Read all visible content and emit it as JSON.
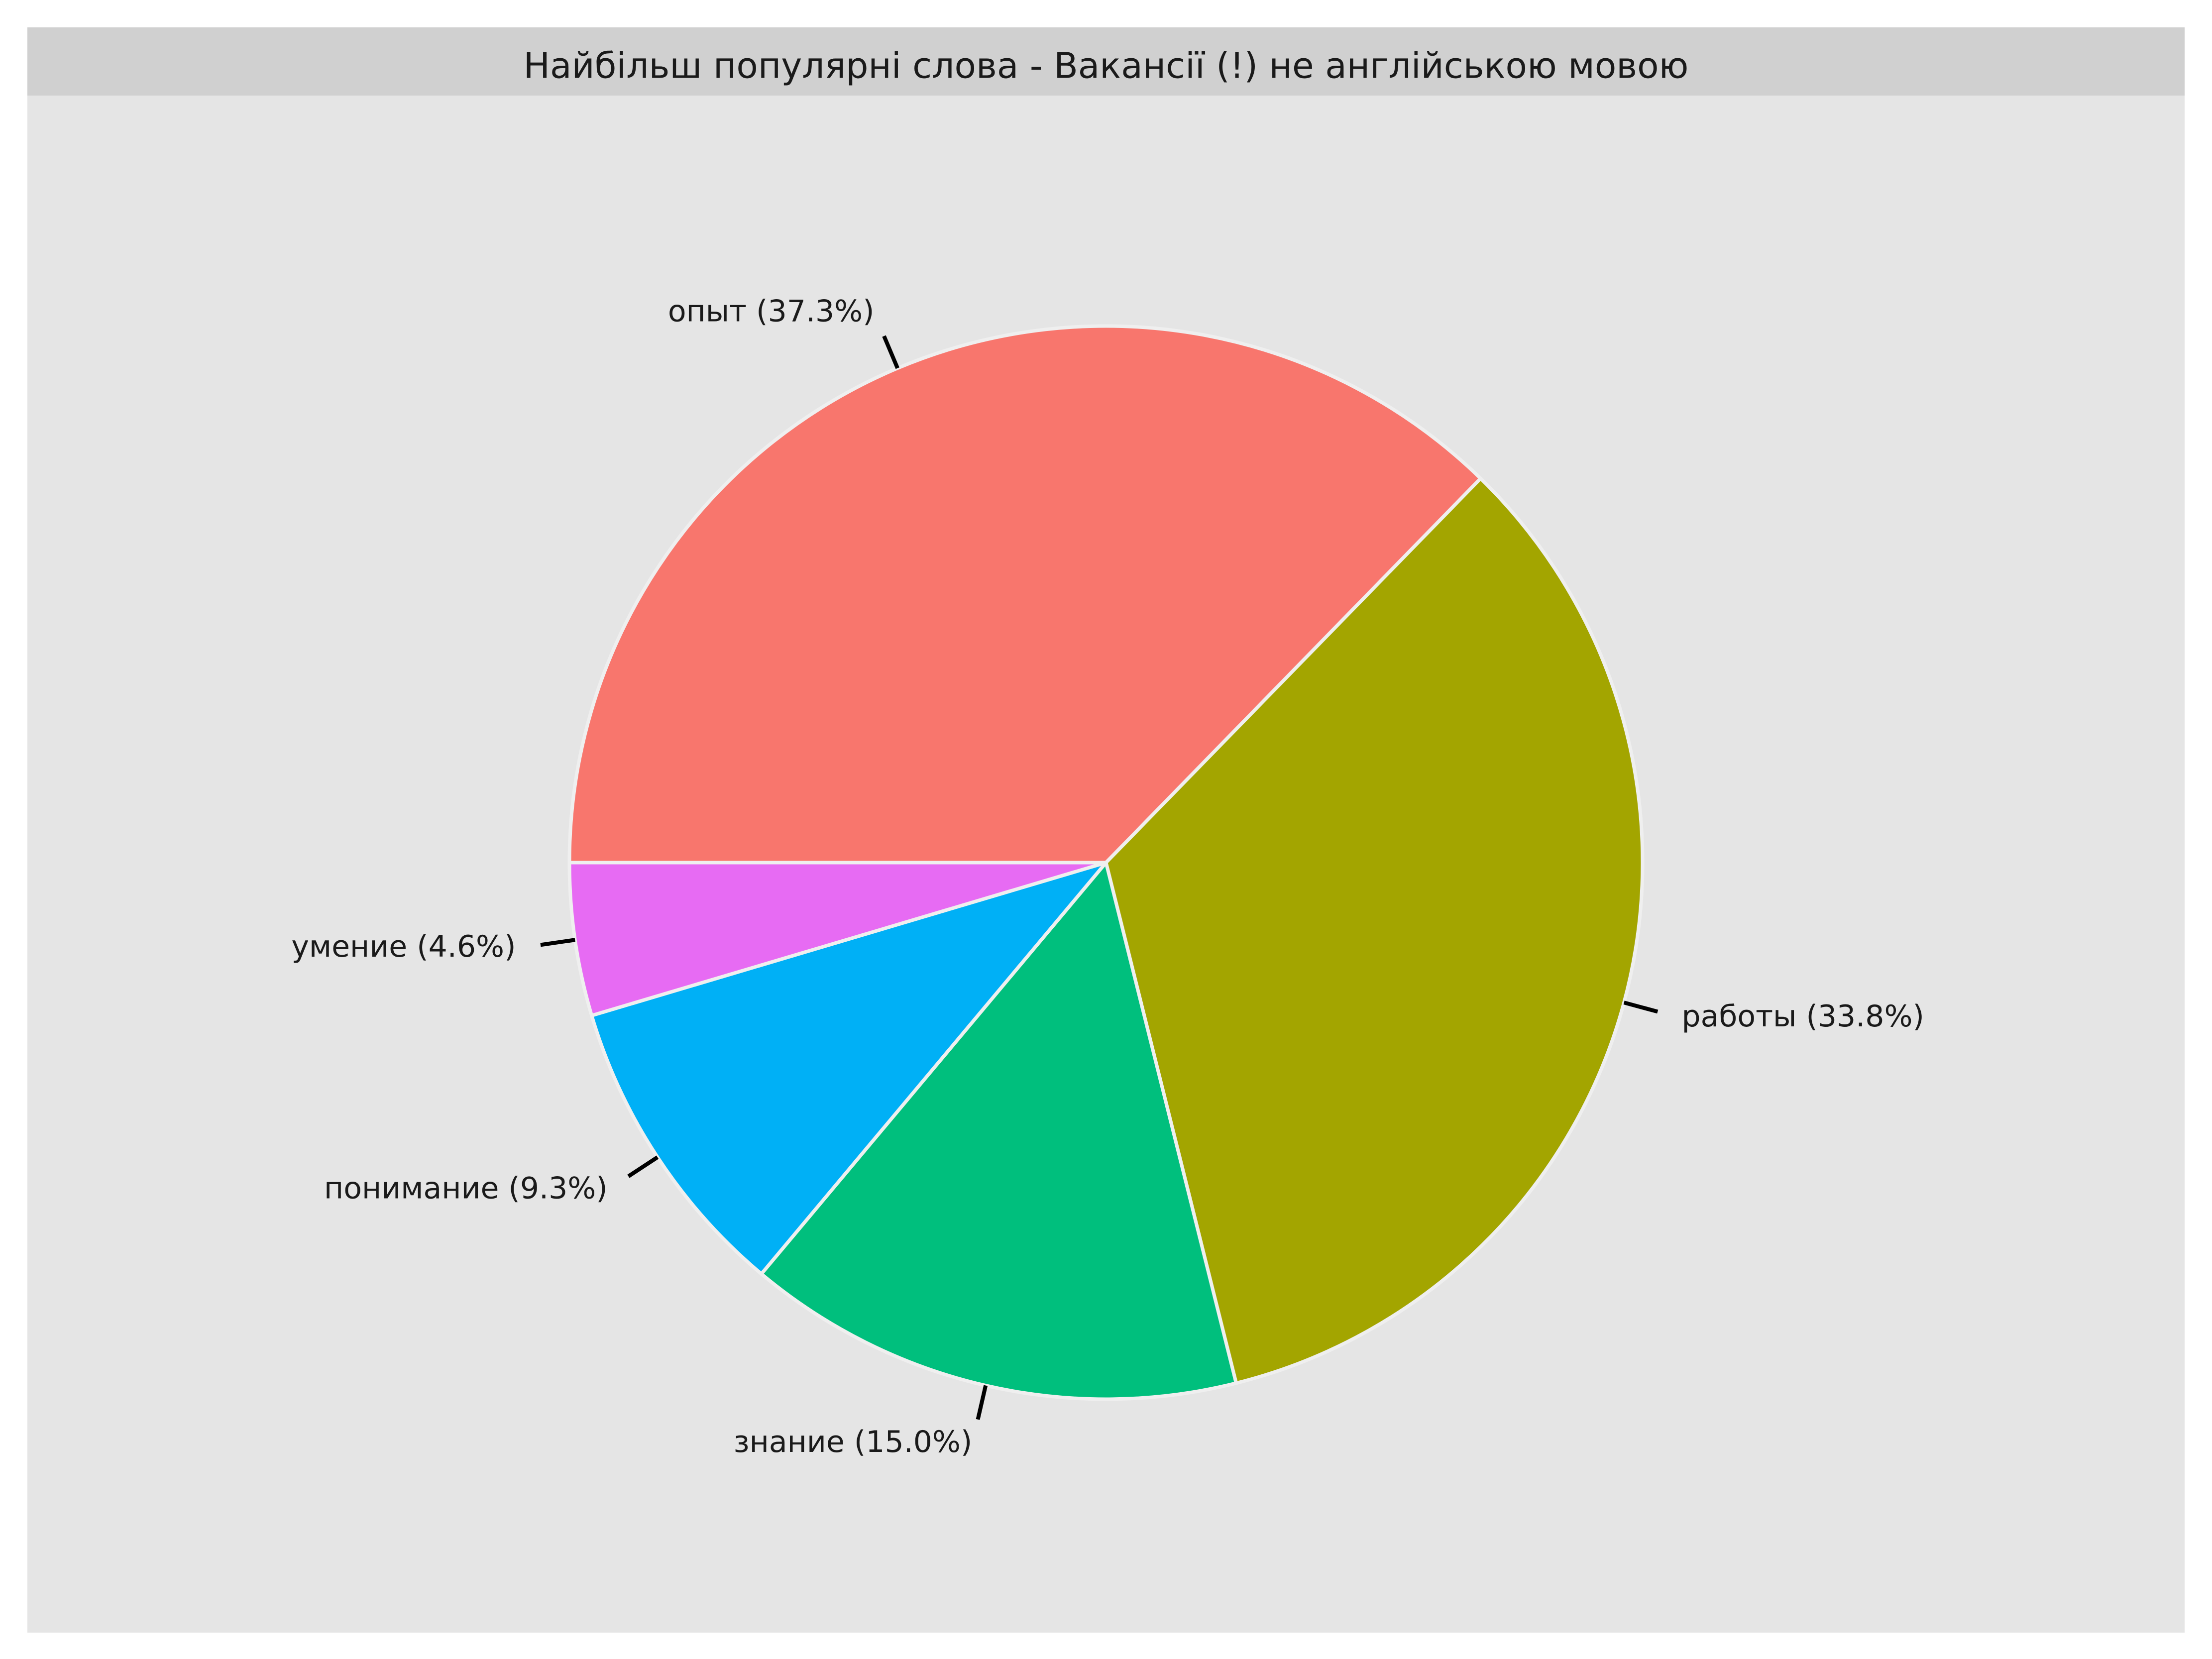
{
  "chart_data": {
    "type": "pie",
    "title": "Найбільш популярні слова - Вакансії (!) не англійською мовою",
    "slices": [
      {
        "label": "опыт",
        "value": 37.3,
        "display": "опыт (37.3%)",
        "color": "#F8766D"
      },
      {
        "label": "работы",
        "value": 33.8,
        "display": "работы (33.8%)",
        "color": "#A3A500"
      },
      {
        "label": "знание",
        "value": 15.0,
        "display": "знание (15.0%)",
        "color": "#00BF7D"
      },
      {
        "label": "понимание",
        "value": 9.3,
        "display": "понимание (9.3%)",
        "color": "#00B0F6"
      },
      {
        "label": "умение",
        "value": 4.6,
        "display": "умение (4.6%)",
        "color": "#E76BF3"
      }
    ],
    "start_angle": "9 o'clock",
    "direction": "clockwise",
    "legend": "none",
    "colors": {
      "panel_background": "#E5E5E5",
      "title_strip": "#D0D0D0",
      "slice_border": "#EFEFEF",
      "leader_line": "#000000"
    }
  }
}
